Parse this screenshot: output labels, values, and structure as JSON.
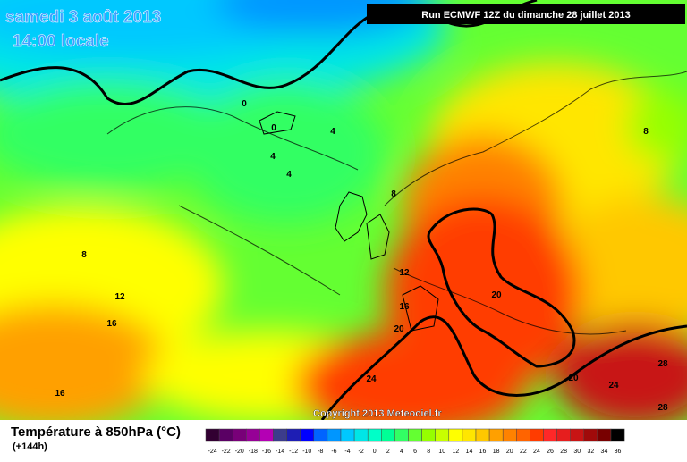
{
  "header": {
    "date": "samedi 3 août 2013",
    "time": "14:00 locale",
    "run": "Run ECMWF 12Z du dimanche 28 juillet 2013"
  },
  "footer": {
    "title": "Température à 850hPa (°C)",
    "lead": "(+144h)",
    "copyright": "Copyright 2013 Meteociel.fr"
  },
  "contour_labels": [
    0,
    0,
    4,
    4,
    4,
    8,
    8,
    8,
    12,
    12,
    16,
    16,
    16,
    20,
    20,
    20,
    24,
    24,
    28,
    28
  ],
  "legend": {
    "labels": [
      -24,
      -22,
      -20,
      -18,
      -16,
      -14,
      -12,
      -10,
      -8,
      -6,
      -4,
      -2,
      0,
      2,
      4,
      6,
      8,
      10,
      12,
      14,
      16,
      18,
      20,
      22,
      24,
      26,
      28,
      30,
      32,
      34,
      36
    ],
    "colors": [
      "#320032",
      "#5a0064",
      "#780078",
      "#960096",
      "#b400b4",
      "#3c3c8c",
      "#1e1eb4",
      "#0000ff",
      "#0064ff",
      "#0096ff",
      "#00c8ff",
      "#00e6e6",
      "#00ffc8",
      "#00ff96",
      "#32ff64",
      "#64ff32",
      "#96ff00",
      "#c8ff00",
      "#ffff00",
      "#ffe600",
      "#ffc800",
      "#ffa000",
      "#ff8200",
      "#ff6400",
      "#ff3c00",
      "#ff2828",
      "#e61e1e",
      "#c81414",
      "#a00a0a",
      "#780000",
      "#000000"
    ]
  }
}
